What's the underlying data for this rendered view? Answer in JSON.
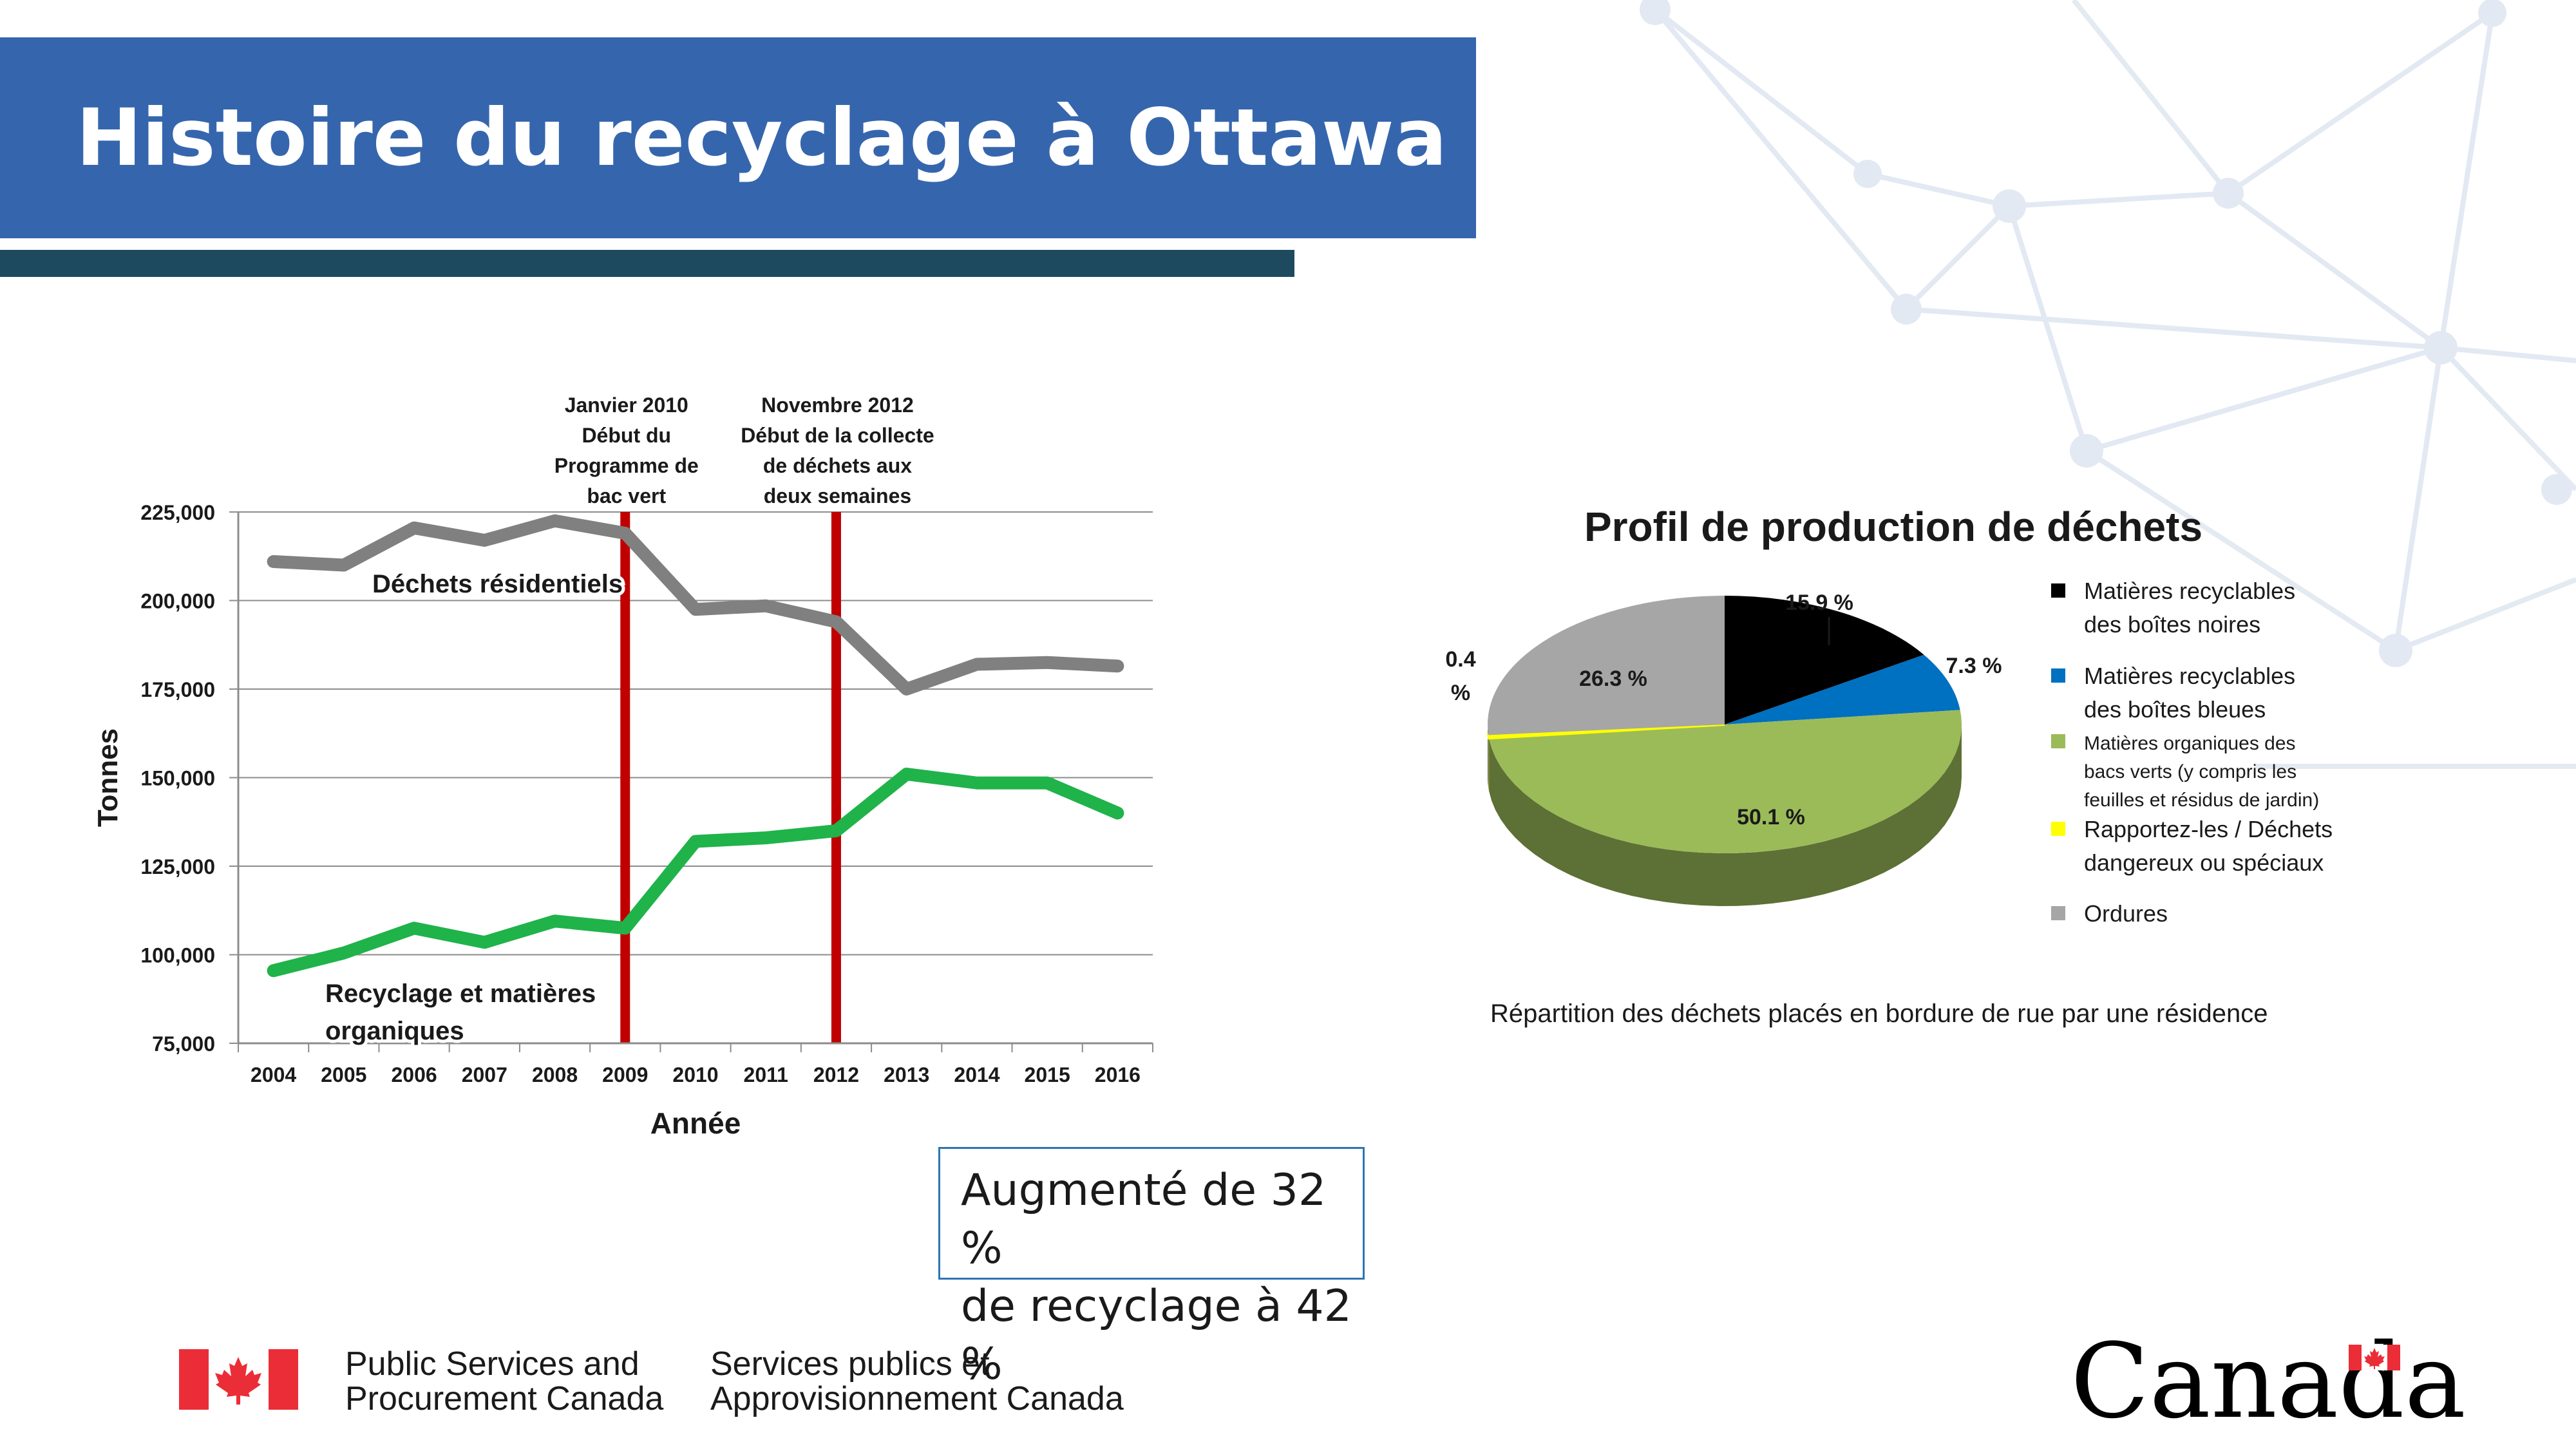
{
  "header": {
    "title": "Histoire du recyclage à Ottawa"
  },
  "colors": {
    "header_blue": "#3566ad",
    "underline_teal": "#1e4a5f",
    "res_waste": "#808080",
    "recycling": "#1fb34a",
    "event_lines": "#c00000"
  },
  "chart_data": [
    {
      "type": "line",
      "x": [
        2004,
        2005,
        2006,
        2007,
        2008,
        2009,
        2010,
        2011,
        2012,
        2013,
        2014,
        2015,
        2016
      ],
      "series": [
        {
          "name": "Déchets résidentiels",
          "color": "#808080",
          "values": [
            211000,
            210000,
            220500,
            217000,
            222500,
            219000,
            197500,
            198500,
            194000,
            175000,
            182000,
            182500,
            181500
          ]
        },
        {
          "name": "Recyclage et matières organiques",
          "color": "#1fb34a",
          "values": [
            95500,
            100500,
            107500,
            103500,
            109500,
            107500,
            132000,
            133000,
            135000,
            151000,
            148500,
            148500,
            140000
          ]
        }
      ],
      "ylabel": "Tonnes",
      "xlabel": "Année",
      "ylim": [
        75000,
        225000
      ],
      "yticks": [
        75000,
        100000,
        125000,
        150000,
        175000,
        200000,
        225000
      ],
      "ytick_labels": [
        "75,000",
        "100,000",
        "125,000",
        "150,000",
        "175,000",
        "200,000",
        "225,000"
      ],
      "grid": "horizontal",
      "events": [
        {
          "x": 2009,
          "lines": [
            "Janvier 2010",
            "Début du",
            "Programme de",
            "bac vert"
          ]
        },
        {
          "x": 2012,
          "lines": [
            "Novembre 2012",
            "Début de la collecte",
            "de déchets aux",
            "deux semaines"
          ]
        }
      ],
      "series_labels": [
        {
          "lines": [
            "Déchets résidentiels"
          ]
        },
        {
          "lines": [
            "Recyclage et matières",
            "organiques"
          ]
        }
      ]
    },
    {
      "type": "pie",
      "title": "Profil de production de déchets",
      "slices": [
        {
          "legend": [
            "Matières recyclables",
            "des boîtes noires"
          ],
          "label": "15.9 %",
          "value": 15.9,
          "color": "#000000"
        },
        {
          "legend": [
            "Matières recyclables",
            "des boîtes bleues"
          ],
          "label": "7.3 %",
          "value": 7.3,
          "color": "#0070c0"
        },
        {
          "legend": [
            "Matières organiques des",
            "bacs verts (y compris les",
            "feuilles et résidus de jardin)"
          ],
          "label": "50.1 %",
          "value": 50.1,
          "color": "#9bbb59"
        },
        {
          "legend": [
            "Rapportez-les / Déchets",
            "dangereux ou spéciaux"
          ],
          "label_lines": [
            "0.4",
            "%"
          ],
          "value": 0.4,
          "color": "#ffff00"
        },
        {
          "legend": [
            "Ordures"
          ],
          "label": "26.3 %",
          "value": 26.3,
          "color": "#a6a6a6"
        }
      ],
      "caption": "Répartition des déchets placés en bordure de rue par une résidence"
    }
  ],
  "callout": {
    "line1": "Augmenté de 32 %",
    "line2": "de recyclage à 42 %"
  },
  "footer": {
    "en": [
      "Public Services and",
      "Procurement Canada"
    ],
    "fr": [
      "Services publics et",
      "Approvisionnement Canada"
    ],
    "wordmark": "Canada"
  }
}
